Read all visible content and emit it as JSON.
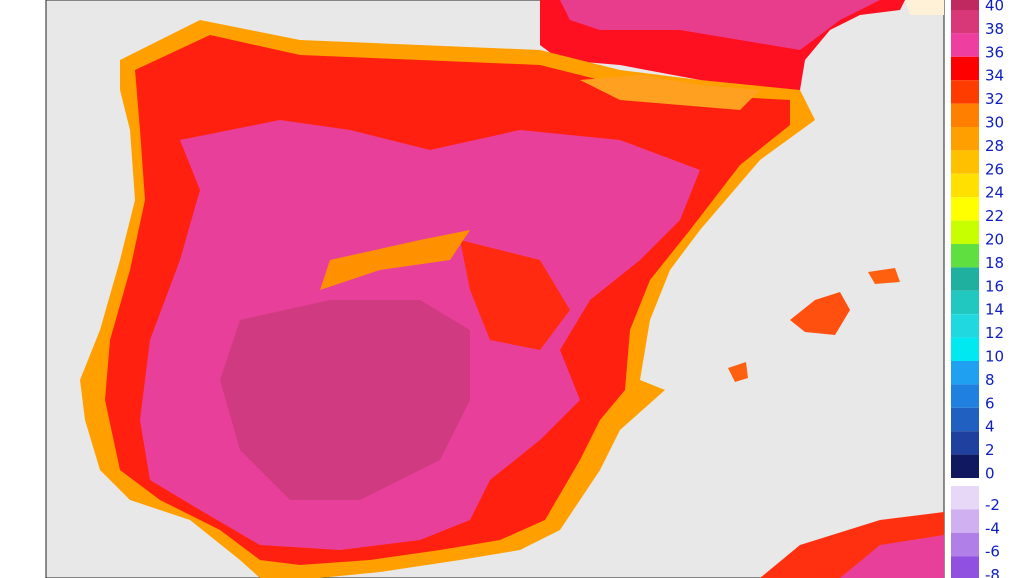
{
  "legend": {
    "labels": [
      "40",
      "38",
      "36",
      "34",
      "32",
      "30",
      "28",
      "26",
      "24",
      "22",
      "20",
      "18",
      "16",
      "14",
      "12",
      "10",
      "8",
      "6",
      "4",
      "2",
      "0",
      "-2",
      "-4",
      "-6",
      "-8"
    ],
    "colors": [
      "#c02860",
      "#d83878",
      "#ee3fa0",
      "#ff0000",
      "#ff3c00",
      "#ff8000",
      "#ffa000",
      "#ffc000",
      "#ffe000",
      "#ffff00",
      "#c8ff00",
      "#60e040",
      "#20b0a0",
      "#20c8c0",
      "#20d8e0",
      "#00e8f0",
      "#20a0f0",
      "#2080e0",
      "#2060c0",
      "#2040a0",
      "#101860",
      "#e8d8f8",
      "#d0b0f0",
      "#b080e8",
      "#9050e0"
    ]
  }
}
